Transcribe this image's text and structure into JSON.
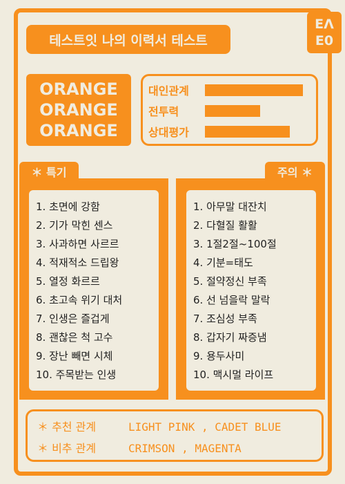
{
  "title": "테스트잇 나의 이력서 테스트",
  "code": {
    "line1": "EΛ",
    "line2": "E0"
  },
  "type_name": [
    "ORANGE",
    "ORANGE",
    "ORANGE"
  ],
  "stats": [
    {
      "label": "대인관계",
      "level": 0.98
    },
    {
      "label": "전투력",
      "level": 0.55
    },
    {
      "label": "상대평가",
      "level": 0.85
    }
  ],
  "strengths": {
    "tab": "＊ 특기",
    "items": [
      "1. 초면에 강함",
      "2. 기가 막힌 센스",
      "3. 사과하면 사르르",
      "4. 적재적소 드립왕",
      "5. 열정 화르르",
      "6. 초고속 위기 대처",
      "7. 인생은 즐겁게",
      "8. 괜찮은 척 고수",
      "9. 장난 빼면 시체",
      "10. 주목받는 인생"
    ]
  },
  "cautions": {
    "tab": "주의 ＊",
    "items": [
      "1. 아무말 대잔치",
      "2. 다혈질 활활",
      "3. 1절2절~100절",
      "4. 기분=태도",
      "5. 절약정신 부족",
      "6. 선 넘을락 말락",
      "7. 조심성 부족",
      "8. 갑자기 짜증냄",
      "9. 용두사미",
      "10. 맥시멀 라이프"
    ]
  },
  "relations": {
    "recommend_label": "＊ 추천 관계",
    "recommend_value": "LIGHT PINK , CADET BLUE",
    "avoid_label": "＊ 비추 관계",
    "avoid_value": "CRIMSON , MAGENTA"
  },
  "colors": {
    "accent": "#f7901e",
    "background": "#f0ecdf",
    "text": "#222222"
  }
}
